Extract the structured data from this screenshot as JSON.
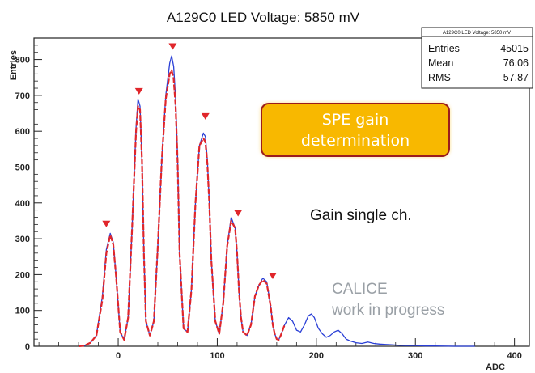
{
  "chart_data": {
    "type": "line",
    "title": "A129C0 LED Voltage: 5850 mV",
    "xlabel": "ADC",
    "ylabel": "Entries",
    "xlim": [
      -85,
      415
    ],
    "ylim": [
      0,
      860
    ],
    "xticks": [
      0,
      100,
      200,
      300,
      400
    ],
    "yticks": [
      0,
      100,
      200,
      300,
      400,
      500,
      600,
      700,
      800
    ],
    "stats_box": {
      "title": "A129C0 LED Voltage: 5850 mV",
      "rows": [
        {
          "label": "Entries",
          "value": "45015"
        },
        {
          "label": "Mean",
          "value": "76.06"
        },
        {
          "label": "RMS",
          "value": "57.87"
        }
      ]
    },
    "series": [
      {
        "role": "histogram",
        "color": "#2a3fd6",
        "x": [
          -40,
          -34,
          -28,
          -22,
          -16,
          -12,
          -8,
          -5,
          -2,
          2,
          6,
          10,
          14,
          18,
          20,
          22,
          24,
          26,
          28,
          32,
          36,
          40,
          44,
          48,
          52,
          54,
          56,
          58,
          60,
          62,
          66,
          70,
          74,
          78,
          82,
          86,
          88,
          90,
          92,
          94,
          98,
          102,
          106,
          110,
          114,
          118,
          120,
          122,
          124,
          126,
          130,
          134,
          138,
          142,
          146,
          150,
          154,
          156,
          158,
          160,
          162,
          164,
          168,
          172,
          176,
          180,
          184,
          188,
          192,
          195,
          198,
          202,
          206,
          210,
          214,
          218,
          222,
          226,
          230,
          234,
          240,
          246,
          252,
          258,
          264,
          270,
          276,
          282,
          290,
          300,
          310,
          320,
          340,
          360
        ],
        "y": [
          0,
          2,
          10,
          30,
          140,
          270,
          315,
          290,
          190,
          40,
          18,
          80,
          330,
          610,
          690,
          670,
          520,
          250,
          70,
          30,
          70,
          280,
          520,
          700,
          790,
          810,
          780,
          690,
          520,
          260,
          50,
          40,
          160,
          400,
          560,
          595,
          585,
          520,
          400,
          240,
          70,
          35,
          120,
          280,
          360,
          330,
          260,
          150,
          80,
          40,
          30,
          60,
          140,
          170,
          190,
          180,
          110,
          60,
          35,
          20,
          18,
          30,
          60,
          80,
          70,
          45,
          40,
          60,
          85,
          90,
          80,
          50,
          35,
          25,
          30,
          40,
          45,
          35,
          20,
          15,
          10,
          8,
          12,
          8,
          6,
          5,
          4,
          3,
          2,
          2,
          1,
          1,
          0,
          0
        ]
      },
      {
        "role": "fit",
        "color": "#e0262b",
        "x": [
          -40,
          -34,
          -28,
          -22,
          -16,
          -12,
          -8,
          -5,
          -2,
          2,
          6,
          10,
          14,
          18,
          20,
          22,
          24,
          26,
          28,
          32,
          36,
          40,
          44,
          48,
          52,
          54,
          56,
          58,
          60,
          62,
          66,
          70,
          74,
          78,
          82,
          86,
          88,
          90,
          92,
          94,
          98,
          102,
          106,
          110,
          114,
          118,
          120,
          122,
          124,
          126,
          130,
          134,
          138,
          142,
          146,
          150,
          154,
          156,
          158,
          160,
          162,
          164,
          168
        ],
        "y": [
          0,
          2,
          10,
          30,
          130,
          260,
          310,
          285,
          190,
          40,
          18,
          80,
          330,
          600,
          670,
          660,
          520,
          250,
          70,
          30,
          70,
          280,
          520,
          690,
          760,
          770,
          745,
          670,
          510,
          260,
          50,
          40,
          160,
          400,
          560,
          580,
          570,
          510,
          400,
          240,
          70,
          35,
          120,
          280,
          350,
          330,
          260,
          150,
          80,
          40,
          30,
          60,
          140,
          170,
          185,
          175,
          110,
          60,
          35,
          20,
          18,
          30,
          60
        ]
      }
    ],
    "peak_markers": {
      "color": "#e0262b",
      "x": [
        -12,
        21,
        55,
        88,
        121,
        156
      ],
      "y": [
        330,
        700,
        825,
        630,
        360,
        185
      ]
    },
    "annotations": [
      "Gain single ch.",
      "CALICE",
      "work in progress"
    ]
  },
  "callout": {
    "text": "SPE gain\ndetermination",
    "bg": "#f8b800",
    "border": "#9b1c1c",
    "text_color": "#ffffff"
  }
}
